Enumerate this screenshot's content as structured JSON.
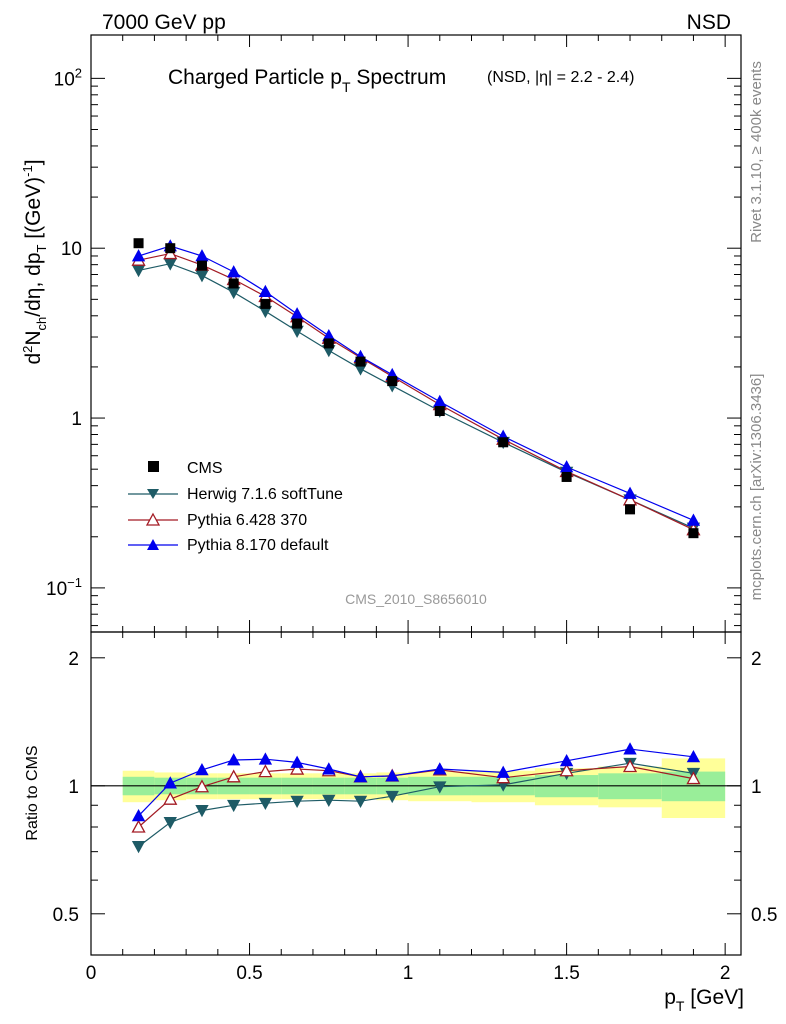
{
  "chart_data": {
    "type": "line",
    "header_left": "7000 GeV pp",
    "header_right": "NSD",
    "title": "Charged Particle p",
    "title_sub": "T",
    "title_tail": " Spectrum",
    "title_extra": "(NSD, |η| = 2.2 - 2.4)",
    "ylabel": "d²N_ch/dη, dp_T [(GeV)⁻¹]",
    "ylabel_parts": {
      "a": "d",
      "a_sup": "2",
      "b": "N",
      "b_sub": "ch",
      "c": "/dη, dp",
      "c_sub": "T",
      "d": " [(GeV)",
      "d_sup": "-1",
      "e": "]"
    },
    "xlabel": "p",
    "xlabel_sub": "T",
    "xlabel_tail": " [GeV]",
    "ratio_ylabel": "Ratio to CMS",
    "watermark": "CMS_2010_S8656010",
    "side_text_top": "Rivet 3.1.10, ≥ 400k events",
    "side_text_bottom": "mcplots.cern.ch [arXiv:1306.3436]",
    "xlim": [
      0,
      2.05
    ],
    "ylim_log": [
      0.055,
      180
    ],
    "ratio_ylim": [
      0.4,
      2.3
    ],
    "x_ticks": [
      0,
      0.5,
      1,
      1.5,
      2
    ],
    "x_tick_labels": [
      "0",
      "0.5",
      "1",
      "1.5",
      "2"
    ],
    "y_ticks": [
      0.1,
      1,
      10,
      100
    ],
    "y_tick_labels": [
      {
        "base": "10",
        "sup": "−1"
      },
      {
        "base": "1",
        "sup": ""
      },
      {
        "base": "10",
        "sup": ""
      },
      {
        "base": "10",
        "sup": "2"
      }
    ],
    "ratio_y_ticks": [
      0.5,
      1,
      2
    ],
    "ratio_y_tick_labels": [
      "0.5",
      "1",
      "2"
    ],
    "x": [
      0.15,
      0.25,
      0.35,
      0.45,
      0.55,
      0.65,
      0.75,
      0.85,
      0.95,
      1.1,
      1.3,
      1.5,
      1.7,
      1.9
    ],
    "bin_edges": [
      0.1,
      0.2,
      0.3,
      0.4,
      0.5,
      0.6,
      0.7,
      0.8,
      0.9,
      1.0,
      1.2,
      1.4,
      1.6,
      1.8,
      2.0
    ],
    "data": {
      "name": "CMS",
      "color": "#000000",
      "values": [
        10.7,
        10.0,
        7.9,
        6.2,
        4.7,
        3.6,
        2.75,
        2.15,
        1.65,
        1.1,
        0.72,
        0.45,
        0.29,
        0.21
      ]
    },
    "uncertainty_bands": {
      "stat_color": "#99ee99",
      "syst_color": "#ffff99",
      "inner": [
        0.05,
        0.045,
        0.045,
        0.045,
        0.045,
        0.045,
        0.045,
        0.045,
        0.045,
        0.05,
        0.05,
        0.06,
        0.07,
        0.08
      ],
      "outer": [
        0.085,
        0.075,
        0.07,
        0.07,
        0.07,
        0.07,
        0.07,
        0.07,
        0.075,
        0.08,
        0.085,
        0.1,
        0.11,
        0.16
      ]
    },
    "series": [
      {
        "name": "Herwig 7.1.6 softTune",
        "color": "#1e5b66",
        "marker": "triangle-down",
        "values": [
          7.4,
          8.1,
          6.9,
          5.5,
          4.25,
          3.25,
          2.5,
          1.95,
          1.55,
          1.1,
          0.72,
          0.48,
          0.33,
          0.225
        ],
        "ratio": [
          0.72,
          0.82,
          0.875,
          0.9,
          0.91,
          0.92,
          0.925,
          0.92,
          0.945,
          0.995,
          1.005,
          1.07,
          1.13,
          1.07
        ]
      },
      {
        "name": "Pythia 6.428 370",
        "color": "#a31b24",
        "marker": "triangle-open",
        "values": [
          8.5,
          9.3,
          7.95,
          6.55,
          5.2,
          3.95,
          2.95,
          2.27,
          1.76,
          1.2,
          0.75,
          0.485,
          0.33,
          0.22
        ],
        "ratio": [
          0.8,
          0.93,
          0.995,
          1.05,
          1.08,
          1.095,
          1.085,
          1.05,
          1.055,
          1.09,
          1.045,
          1.085,
          1.11,
          1.04
        ]
      },
      {
        "name": "Pythia 8.170 default",
        "color": "#0000ee",
        "marker": "triangle-up",
        "values": [
          9.0,
          10.3,
          9.0,
          7.25,
          5.55,
          4.1,
          3.05,
          2.3,
          1.8,
          1.25,
          0.78,
          0.515,
          0.36,
          0.25
        ],
        "ratio": [
          0.85,
          1.015,
          1.09,
          1.15,
          1.155,
          1.135,
          1.095,
          1.05,
          1.055,
          1.095,
          1.075,
          1.145,
          1.22,
          1.17
        ]
      }
    ]
  }
}
